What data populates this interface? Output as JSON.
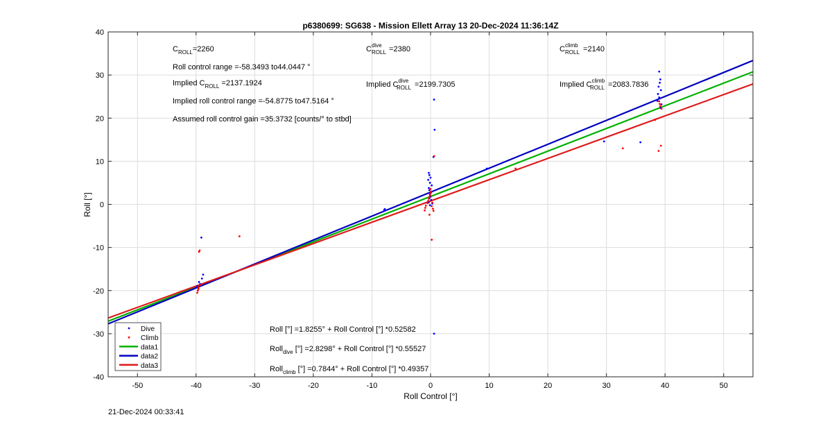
{
  "footer_timestamp": "21-Dec-2024 00:33:41",
  "chart_data": {
    "type": "scatter",
    "title": "p6380699: SG638 - Mission Ellett Array 13 20-Dec-2024 11:36:14Z",
    "xlabel": "Roll Control [°]",
    "ylabel": "Roll [°]",
    "xlim": [
      -55,
      55
    ],
    "ylim": [
      -40,
      40
    ],
    "xticks": [
      -50,
      -40,
      -30,
      -20,
      -10,
      0,
      10,
      20,
      30,
      40,
      50
    ],
    "yticks": [
      -40,
      -30,
      -20,
      -10,
      0,
      10,
      20,
      30,
      40
    ],
    "grid": true,
    "legend_position": "bottom-left",
    "annotations": {
      "c_roll": {
        "sym": "C",
        "sub": "ROLL",
        "value": "=2260"
      },
      "c_roll_dive": {
        "sym": "C",
        "sup": "dive",
        "sub": "ROLL",
        "value": " =2380"
      },
      "c_roll_climb": {
        "sym": "C",
        "sup": "climb",
        "sub": "ROLL",
        "value": " =2140"
      },
      "roll_control_range": "Roll control range =-58.3493 to44.0447 °",
      "implied_c_roll": {
        "prefix": "Implied C",
        "sub": "ROLL",
        "value": " =2137.1924"
      },
      "implied_c_roll_dive": {
        "prefix": "Implied C",
        "sup": "dive",
        "sub": "ROLL",
        "value": " =2199.7305"
      },
      "implied_c_roll_climb": {
        "prefix": "Implied C",
        "sup": "climb",
        "sub": "ROLL",
        "value": " =2083.7836"
      },
      "implied_roll_range": "Implied roll control range =-54.8775 to47.5164 °",
      "assumed_gain": "Assumed roll control gain =35.3732 [counts/° to stbd]",
      "fit_all": {
        "prefix": "Roll [°] ",
        "value": "=1.8255° + Roll Control [°] *0.52582"
      },
      "fit_dive": {
        "prefix": "Roll",
        "sub": "dive",
        "value": " [°] =2.8298° + Roll Control [°] *0.55527"
      },
      "fit_climb": {
        "prefix": "Roll",
        "sub": "climb",
        "value": " [°] =0.7844° + Roll Control [°] *0.49357"
      }
    },
    "series": [
      {
        "name": "Dive",
        "kind": "points",
        "color": "#0000ff",
        "x": [
          -39.6,
          -39.3,
          -39.0,
          -39.8,
          -39.5,
          -39.1,
          -38.8,
          -7.9,
          -7.8,
          0.6,
          0.7,
          0.5,
          -0.3,
          -0.2,
          0.0,
          -0.4,
          -0.1,
          0.2,
          -0.3,
          -0.2,
          0.1,
          -0.1,
          0.0,
          -0.2,
          0.1,
          -0.3,
          0.3,
          -0.1,
          0.6,
          39.0,
          39.2,
          39.1,
          38.9,
          39.3,
          38.8,
          39.0,
          38.7,
          39.4,
          39.2,
          29.6,
          35.8,
          9.6
        ],
        "y": [
          -19.6,
          -18.5,
          -17.2,
          -19.0,
          -18.0,
          -7.7,
          -16.3,
          -1.3,
          -1.1,
          24.3,
          17.3,
          11.0,
          7.3,
          6.8,
          6.2,
          5.7,
          5.0,
          4.4,
          3.8,
          3.3,
          2.8,
          2.3,
          1.8,
          1.4,
          1.0,
          0.5,
          0.2,
          -0.2,
          -30.0,
          30.8,
          29.0,
          28.2,
          27.3,
          26.5,
          25.6,
          24.8,
          24.0,
          23.2,
          22.4,
          14.6,
          14.4,
          8.3
        ]
      },
      {
        "name": "Climb",
        "kind": "points",
        "color": "#ff0000",
        "x": [
          -39.8,
          -39.7,
          -39.6,
          -39.5,
          -39.4,
          -39.6,
          -39.3,
          -32.6,
          -1.0,
          -0.9,
          -0.8,
          -0.5,
          -0.4,
          -0.3,
          -0.2,
          -0.1,
          0.0,
          0.1,
          0.2,
          0.3,
          0.4,
          0.5,
          0.6,
          -0.2,
          0.2,
          0.0,
          39.0,
          39.1,
          39.2,
          39.3,
          38.9,
          39.4,
          32.8,
          38.3,
          14.5
        ],
        "y": [
          -20.5,
          -20.0,
          -19.6,
          -11.0,
          -10.7,
          -19.2,
          -18.7,
          -7.4,
          -1.4,
          -0.8,
          -0.3,
          0.3,
          0.8,
          1.3,
          1.7,
          2.1,
          2.6,
          3.0,
          -0.4,
          0.4,
          -1.0,
          -1.5,
          11.2,
          -2.4,
          -8.2,
          3.6,
          23.9,
          23.3,
          22.8,
          13.6,
          12.4,
          22.2,
          13.0,
          19.6,
          8.3
        ]
      },
      {
        "name": "data1",
        "kind": "line",
        "color": "#00b000",
        "x": [
          -55,
          55
        ],
        "y": [
          -27.09,
          30.75
        ]
      },
      {
        "name": "data2",
        "kind": "line",
        "color": "#0000c0",
        "x": [
          -55,
          55
        ],
        "y": [
          -27.71,
          33.37
        ]
      },
      {
        "name": "data3",
        "kind": "line",
        "color": "#dd1a1a",
        "x": [
          -55,
          55
        ],
        "y": [
          -26.36,
          27.93
        ]
      }
    ]
  }
}
